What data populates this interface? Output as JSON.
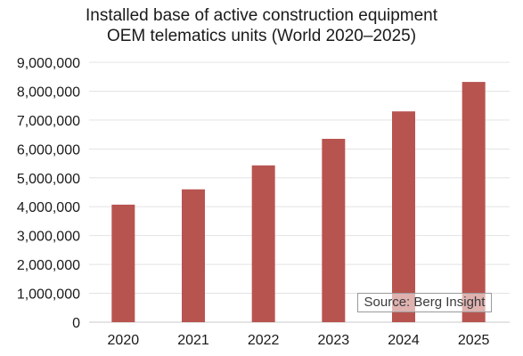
{
  "chart_data": {
    "type": "bar",
    "title": [
      "Installed base of active construction equipment",
      "OEM telematics units (World 2020–2025)"
    ],
    "categories": [
      "2020",
      "2021",
      "2022",
      "2023",
      "2024",
      "2025"
    ],
    "values": [
      4070000,
      4600000,
      5430000,
      6350000,
      7300000,
      8320000
    ],
    "ylim": [
      0,
      9000000
    ],
    "yticks": [
      0,
      1000000,
      2000000,
      3000000,
      4000000,
      5000000,
      6000000,
      7000000,
      8000000,
      9000000
    ],
    "ytick_labels": [
      "0",
      "1,000,000",
      "2,000,000",
      "3,000,000",
      "4,000,000",
      "5,000,000",
      "6,000,000",
      "7,000,000",
      "8,000,000",
      "9,000,000"
    ],
    "xlabel": "",
    "ylabel": "",
    "grid": true,
    "bar_color": "#b85450",
    "source": "Source: Berg Insight"
  }
}
